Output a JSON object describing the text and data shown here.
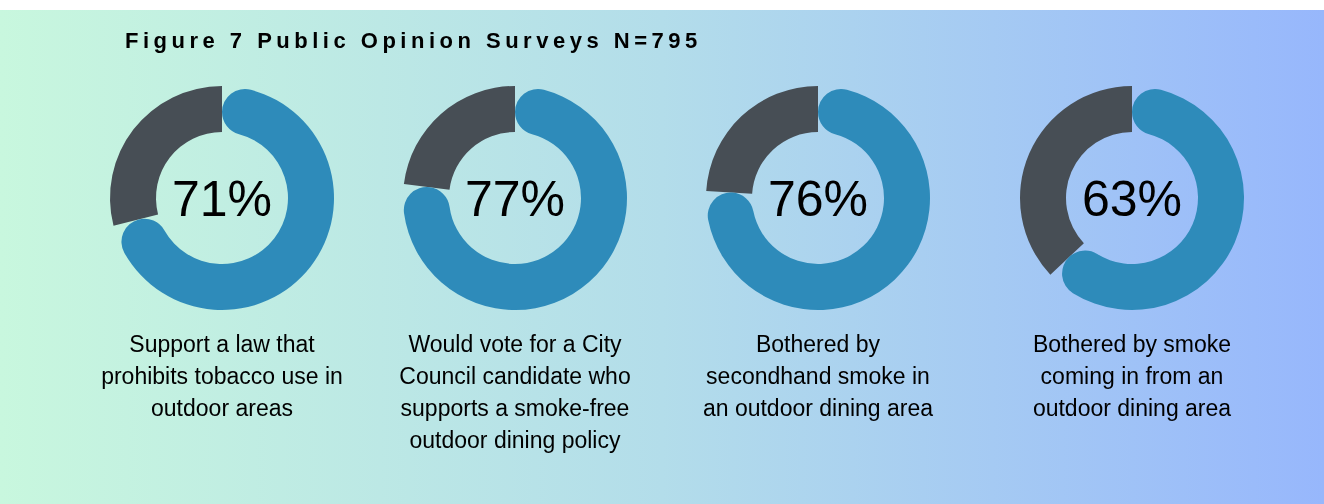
{
  "chart_data": [
    {
      "type": "donut",
      "title": "Figure 7 Public Opinion Surveys N=795",
      "categories": [
        "Support a law that prohibits tobacco use in outdoor areas",
        null
      ],
      "values": [
        71,
        29
      ],
      "colors": [
        "#2e8bba",
        "#474e55"
      ],
      "value_labels": [
        "71%",
        null
      ]
    },
    {
      "type": "donut",
      "categories": [
        "Would vote for a City Council candidate who supports a smoke-free outdoor dining policy",
        null
      ],
      "values": [
        77,
        23
      ],
      "colors": [
        "#2e8bba",
        "#474e55"
      ],
      "value_labels": [
        "77%",
        null
      ]
    },
    {
      "type": "donut",
      "categories": [
        "Bothered by secondhand smoke in an outdoor dining area",
        null
      ],
      "values": [
        76,
        24
      ],
      "colors": [
        "#2e8bba",
        "#474e55"
      ],
      "value_labels": [
        "76%",
        null
      ]
    },
    {
      "type": "donut",
      "categories": [
        "Bothered by smoke coming in from an outdoor dining area",
        null
      ],
      "values": [
        63,
        37
      ],
      "colors": [
        "#2e8bba",
        "#474e55"
      ],
      "value_labels": [
        "63%",
        null
      ]
    }
  ]
}
